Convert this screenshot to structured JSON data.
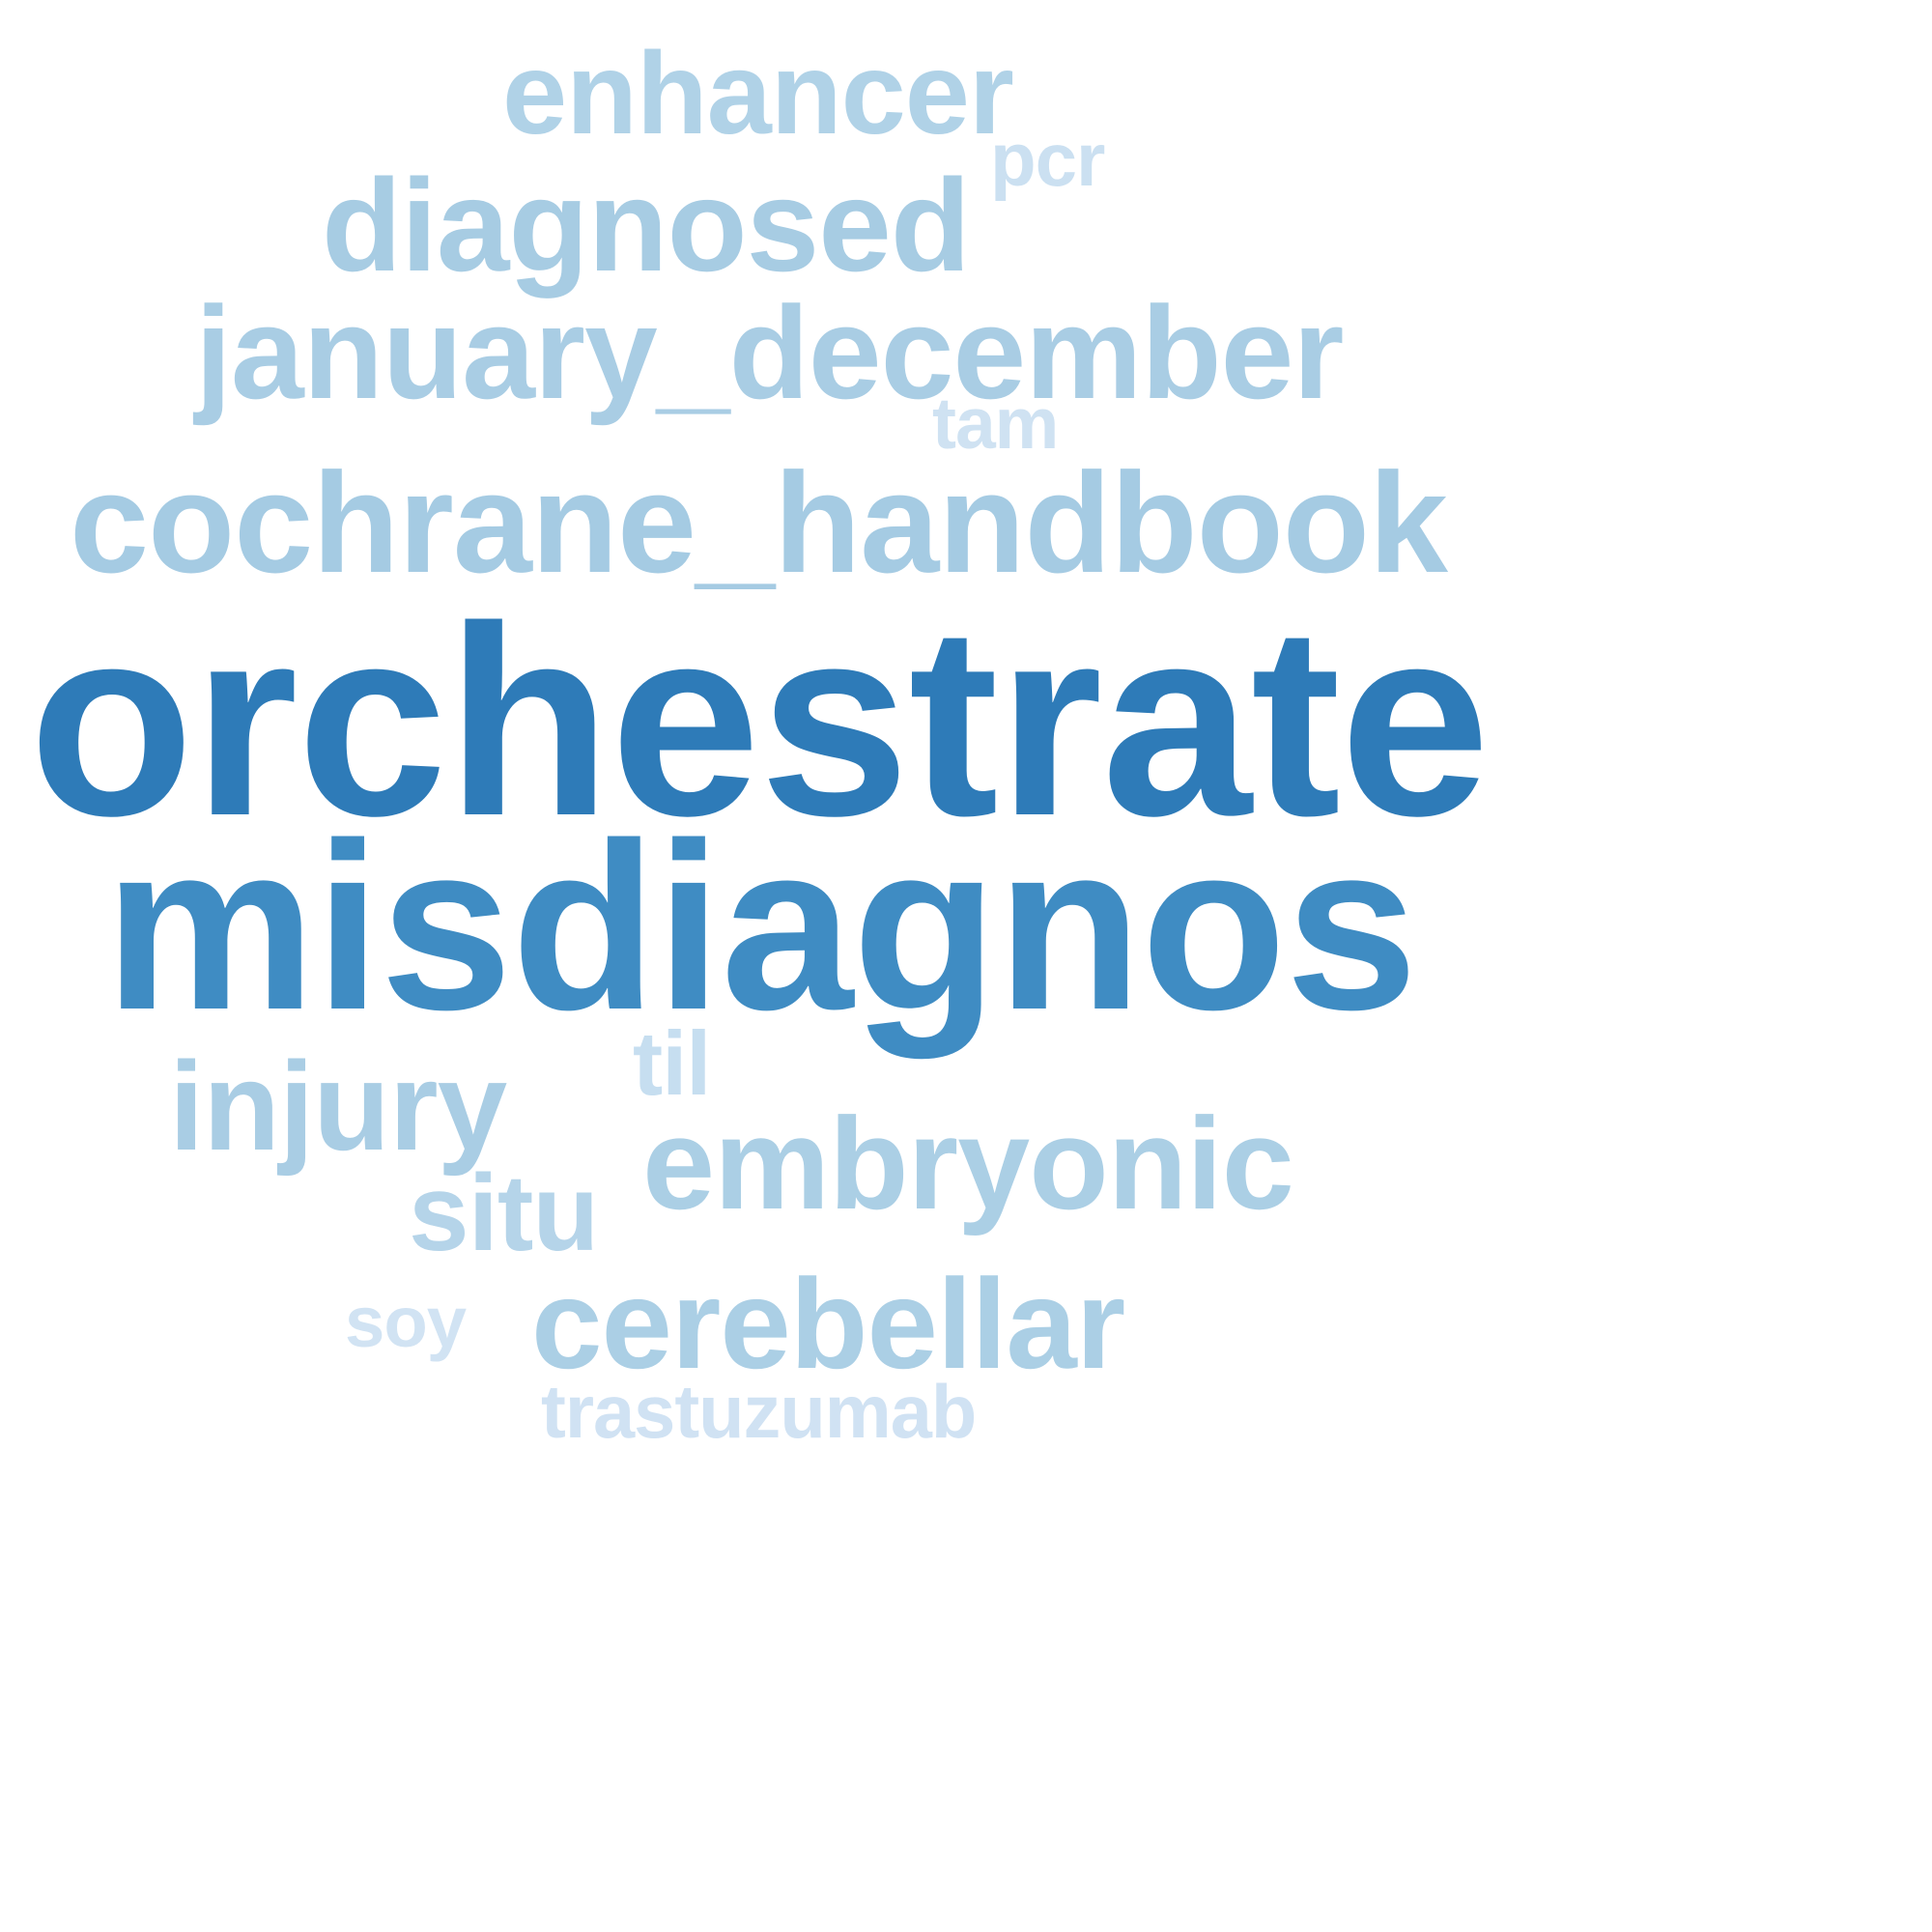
{
  "word_cloud": {
    "words": [
      {
        "id": "orchestrate",
        "text": "orchestrate",
        "color": "#2e7bb8"
      },
      {
        "id": "misdiagnos",
        "text": "misdiagnos",
        "color": "#3f8cc3"
      },
      {
        "id": "cochrane_handbook",
        "text": "cochrane_handbook",
        "color": "#a5cbe3"
      },
      {
        "id": "january_december",
        "text": "january_december",
        "color": "#a9cde4"
      },
      {
        "id": "diagnosed",
        "text": "diagnosed",
        "color": "#a7cce3"
      },
      {
        "id": "enhancer",
        "text": "enhancer",
        "color": "#b0d2e7"
      },
      {
        "id": "embryonic",
        "text": "embryonic",
        "color": "#abcfe5"
      },
      {
        "id": "cerebellar",
        "text": "cerebellar",
        "color": "#abcfe5"
      },
      {
        "id": "injury",
        "text": "injury",
        "color": "#a9cde4"
      },
      {
        "id": "situ",
        "text": "situ",
        "color": "#b5d4e9"
      },
      {
        "id": "til",
        "text": "til",
        "color": "#c6def0"
      },
      {
        "id": "pcr",
        "text": "pcr",
        "color": "#cbe0f1"
      },
      {
        "id": "tam",
        "text": "tam",
        "color": "#cfe2f2"
      },
      {
        "id": "soy",
        "text": "soy",
        "color": "#d1e3f3"
      },
      {
        "id": "trastuzumab",
        "text": "trastuzumab",
        "color": "#d0e2f3"
      }
    ]
  }
}
